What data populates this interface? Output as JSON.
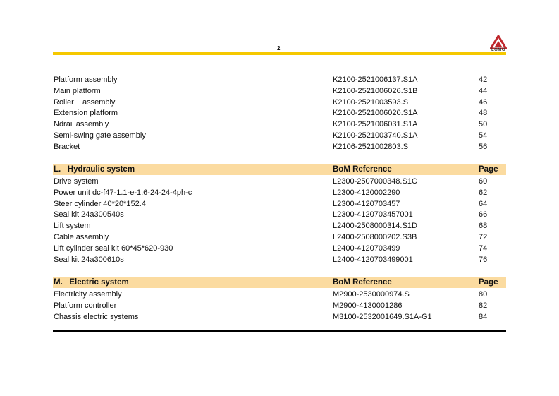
{
  "page_number": "2",
  "logo": {
    "text": "LGMG",
    "color": "#c0282d"
  },
  "colors": {
    "rule": "#f5c800",
    "section_header_bg": "#fbdba0"
  },
  "intro_rows": [
    {
      "name": "Platform assembly",
      "ref": "K2100-2521006137.S1A",
      "page": "42"
    },
    {
      "name": "Main platform",
      "ref": "K2100-2521006026.S1B",
      "page": "44"
    },
    {
      "name": "Roller    assembly",
      "ref": "K2100-2521003593.S",
      "page": "46"
    },
    {
      "name": "Extension platform",
      "ref": "K2100-2521006020.S1A",
      "page": "48"
    },
    {
      "name": "Ndrail assembly",
      "ref": "K2100-2521006031.S1A",
      "page": "50"
    },
    {
      "name": "Semi-swing gate assembly",
      "ref": "K2100-2521003740.S1A",
      "page": "54"
    },
    {
      "name": "Bracket",
      "ref": "K2106-2521002803.S",
      "page": "56"
    }
  ],
  "sections": [
    {
      "title": "L.   Hydraulic system",
      "ref_header": "BoM Reference",
      "page_header": "Page",
      "rows": [
        {
          "name": "Drive system",
          "ref": "L2300-2507000348.S1C",
          "page": "60"
        },
        {
          "name": "Power unit dc-f47-1.1-e-1.6-24-24-4ph-c",
          "ref": "L2300-4120002290",
          "page": "62"
        },
        {
          "name": "Steer cylinder 40*20*152.4",
          "ref": "L2300-4120703457",
          "page": "64"
        },
        {
          "name": "Seal kit 24a300540s",
          "ref": "L2300-4120703457001",
          "page": "66"
        },
        {
          "name": "Lift system",
          "ref": "L2400-2508000314.S1D",
          "page": "68"
        },
        {
          "name": "Cable assembly",
          "ref": "L2400-2508000202.S3B",
          "page": "72"
        },
        {
          "name": "Lift cylinder seal kit 60*45*620-930",
          "ref": "L2400-4120703499",
          "page": "74"
        },
        {
          "name": "Seal kit 24a300610s",
          "ref": "L2400-4120703499001",
          "page": "76"
        }
      ]
    },
    {
      "title": "M.   Electric system",
      "ref_header": "BoM Reference",
      "page_header": "Page",
      "rows": [
        {
          "name": "Electricity assembly",
          "ref": "M2900-2530000974.S",
          "page": "80"
        },
        {
          "name": "Platform controller",
          "ref": "M2900-4130001286",
          "page": "82"
        },
        {
          "name": "Chassis electric systems",
          "ref": "M3100-2532001649.S1A-G1",
          "page": "84"
        }
      ]
    }
  ]
}
